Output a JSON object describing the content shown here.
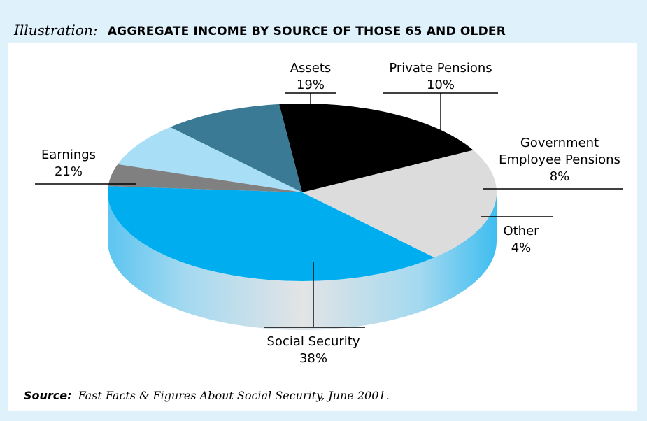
{
  "title": {
    "prefix": "Illustration:",
    "main": "AGGREGATE INCOME BY SOURCE OF THOSE 65 AND OLDER"
  },
  "source": {
    "label": "Source:",
    "text": "Fast Facts & Figures About Social Security, June 2001."
  },
  "colors": {
    "frame": "#dff1fb",
    "social_security": "#00aeef",
    "earnings": "#dcdcdc",
    "assets": "#000000",
    "private_pensions": "#3a7a94",
    "government_pensions": "#a9def7",
    "other": "#808080"
  },
  "chart_data": {
    "type": "pie",
    "title": "AGGREGATE INCOME BY SOURCE OF THOSE 65 AND OLDER",
    "slices": [
      {
        "label": "Social Security",
        "value": 38,
        "value_label": "38%",
        "color": "#00aeef"
      },
      {
        "label": "Earnings",
        "value": 21,
        "value_label": "21%",
        "color": "#dcdcdc"
      },
      {
        "label": "Assets",
        "value": 19,
        "value_label": "19%",
        "color": "#000000"
      },
      {
        "label": "Private Pensions",
        "value": 10,
        "value_label": "10%",
        "color": "#3a7a94"
      },
      {
        "label": "Government Employee Pensions",
        "value": 8,
        "value_label": "8%",
        "color": "#a9def7"
      },
      {
        "label": "Other",
        "value": 4,
        "value_label": "4%",
        "color": "#808080"
      }
    ]
  }
}
